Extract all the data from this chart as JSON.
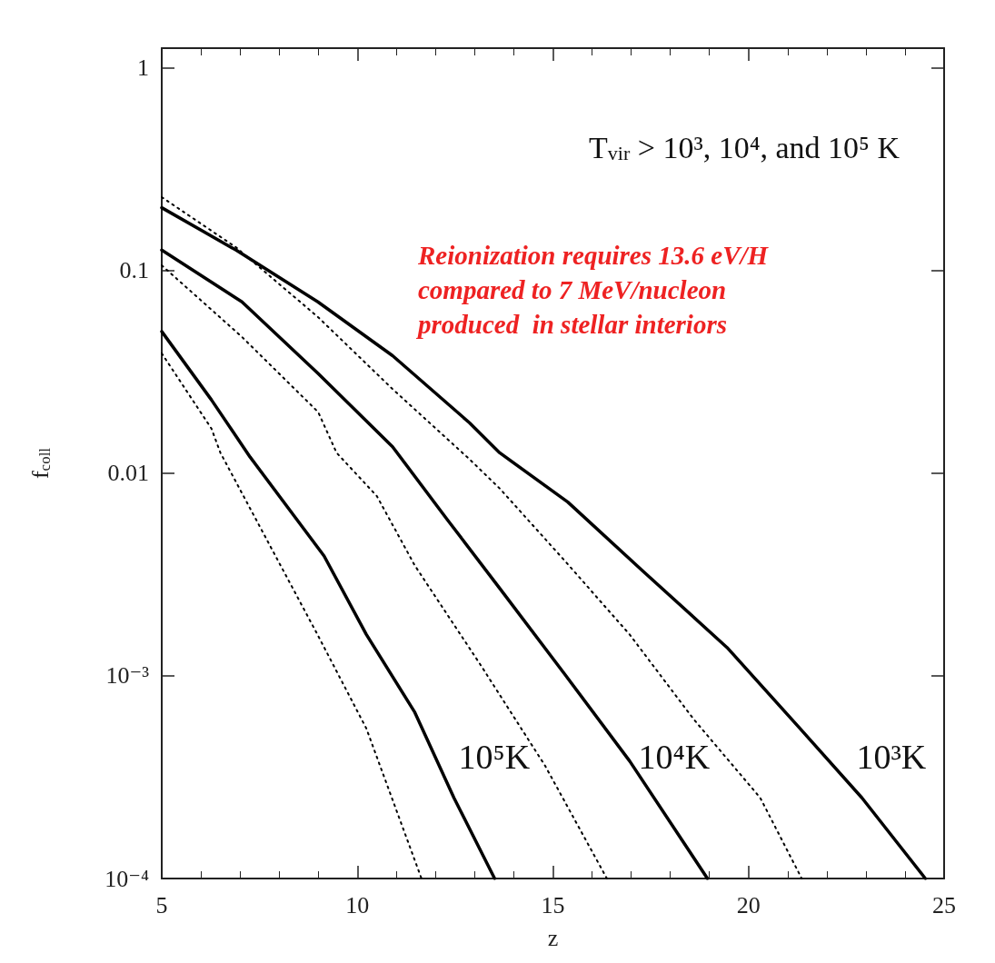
{
  "chart_data": {
    "type": "line",
    "title": "T$_{vir}$ > 10³, 10⁴, and 10⁵ K",
    "xlabel": "z",
    "ylabel": "f$_{coll}$",
    "log": "y",
    "xlim": [
      5,
      25
    ],
    "xticks": [
      5,
      10,
      15,
      20,
      25
    ],
    "ylim": [
      0.0001,
      1.25
    ],
    "yticks": [
      1,
      0.1,
      0.01,
      {
        "value": 0.001,
        "label": "10⁻³"
      },
      {
        "value": 0.0001,
        "label": "10⁻⁴"
      }
    ],
    "grid": false,
    "marker": "none",
    "annotations": [
      "Reionization requires 13.6 eV/H\ncompared to 7 MeV/nucleon\nproduced  in stellar interiors",
      "10⁵K",
      "10⁴K",
      "10³K"
    ],
    "series": [
      {
        "color": "#000000",
        "line_style": "solid",
        "x": [
          5,
          6.9,
          8.99,
          10.9,
          12.87,
          13.64,
          15.38,
          17.29,
          19.45,
          21.28,
          22.9,
          24.52
        ],
        "values": [
          0.204,
          0.126,
          0.07,
          0.038,
          0.0177,
          0.0126,
          0.0072,
          0.0033,
          0.00138,
          0.00056,
          0.00025,
          0.0001
        ]
      },
      {
        "color": "#000000",
        "line_style": "dotted",
        "x": [
          5,
          6.9,
          8.99,
          10.9,
          12.87,
          13.64,
          15.3,
          16.96,
          18.6,
          20.3,
          21.36
        ],
        "values": [
          0.23,
          0.13,
          0.059,
          0.026,
          0.0117,
          0.0084,
          0.0037,
          0.0016,
          0.00061,
          0.00025,
          0.0001
        ]
      },
      {
        "color": "#000000",
        "line_style": "solid",
        "x": [
          5,
          7.05,
          9.0,
          10.9,
          12.3,
          13.64,
          15.3,
          16.96,
          18.95
        ],
        "values": [
          0.126,
          0.07,
          0.031,
          0.0135,
          0.0059,
          0.0027,
          0.00102,
          0.00038,
          0.0001
        ]
      },
      {
        "color": "#000000",
        "line_style": "dotted",
        "x": [
          5,
          7.05,
          9.0,
          9.47,
          10.5,
          11.47,
          13.14,
          14.8,
          16.38
        ],
        "values": [
          0.106,
          0.047,
          0.02,
          0.0126,
          0.0077,
          0.0035,
          0.00114,
          0.00036,
          0.0001
        ]
      },
      {
        "color": "#000000",
        "line_style": "solid",
        "x": [
          5,
          6.27,
          7.26,
          9.15,
          10.23,
          11.47,
          12.47,
          13.51
        ],
        "values": [
          0.05,
          0.023,
          0.012,
          0.0039,
          0.0016,
          0.00066,
          0.00025,
          0.0001
        ]
      },
      {
        "color": "#000000",
        "line_style": "dotted",
        "x": [
          5,
          6.27,
          6.5,
          7.82,
          8.98,
          10.23,
          11.64
        ],
        "values": [
          0.039,
          0.0166,
          0.0126,
          0.0042,
          0.0016,
          0.00055,
          0.0001
        ]
      }
    ]
  }
}
